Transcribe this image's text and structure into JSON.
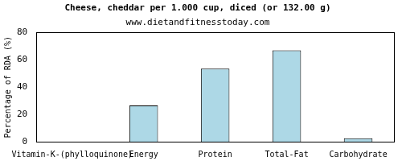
{
  "chart_data": {
    "type": "bar",
    "title": "Cheese, cheddar per 1.000 cup, diced (or 132.00 g)",
    "subtitle": "www.dietandfitnesstoday.com",
    "y_label": "Percentage of RDA (%)",
    "categories": [
      "Vitamin-K-(phylloquinone)",
      "Energy",
      "Protein",
      "Total-Fat",
      "Carbohydrate"
    ],
    "values": [
      0,
      26.5,
      53.5,
      67,
      2.5
    ],
    "color": "#add8e6",
    "ylim": [
      0,
      80
    ],
    "yticks": [
      0,
      20,
      40,
      60,
      80
    ],
    "grid": false
  }
}
